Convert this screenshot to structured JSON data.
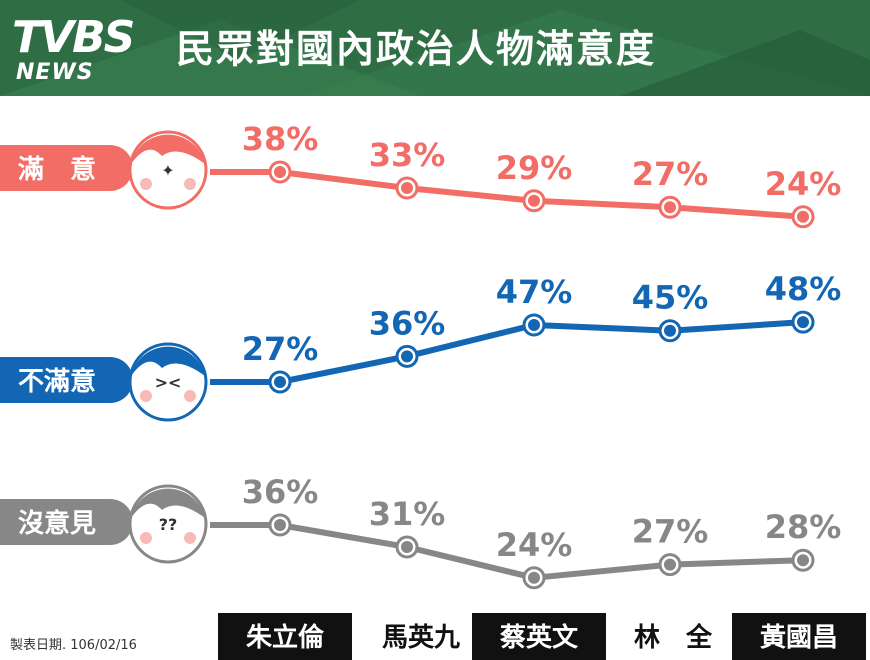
{
  "header": {
    "logo_main": "TVBS",
    "logo_news": "NEWS",
    "title": "民眾對國內政治人物滿意度"
  },
  "footer": {
    "date_note": "製表日期. 106/02/16"
  },
  "colors": {
    "header_green": "#2c6b43",
    "satisfied": "#f26d66",
    "dissatisfied": "#1266b3",
    "no_opinion": "#878787",
    "name_box_dark": "#111111"
  },
  "chart_data": {
    "type": "line",
    "categories": [
      "朱立倫",
      "馬英九",
      "蔡英文",
      "林　全",
      "黃國昌"
    ],
    "series": [
      {
        "name": "滿　意",
        "values": [
          38,
          33,
          29,
          27,
          24
        ],
        "labels": [
          "38%",
          "33%",
          "29%",
          "27%",
          "24%"
        ]
      },
      {
        "name": "不滿意",
        "values": [
          27,
          36,
          47,
          45,
          48
        ],
        "labels": [
          "27%",
          "36%",
          "47%",
          "45%",
          "48%"
        ]
      },
      {
        "name": "沒意見",
        "values": [
          36,
          31,
          24,
          27,
          28
        ],
        "labels": [
          "36%",
          "31%",
          "24%",
          "27%",
          "28%"
        ]
      }
    ],
    "category_box_dark": [
      true,
      false,
      true,
      false,
      true
    ]
  }
}
